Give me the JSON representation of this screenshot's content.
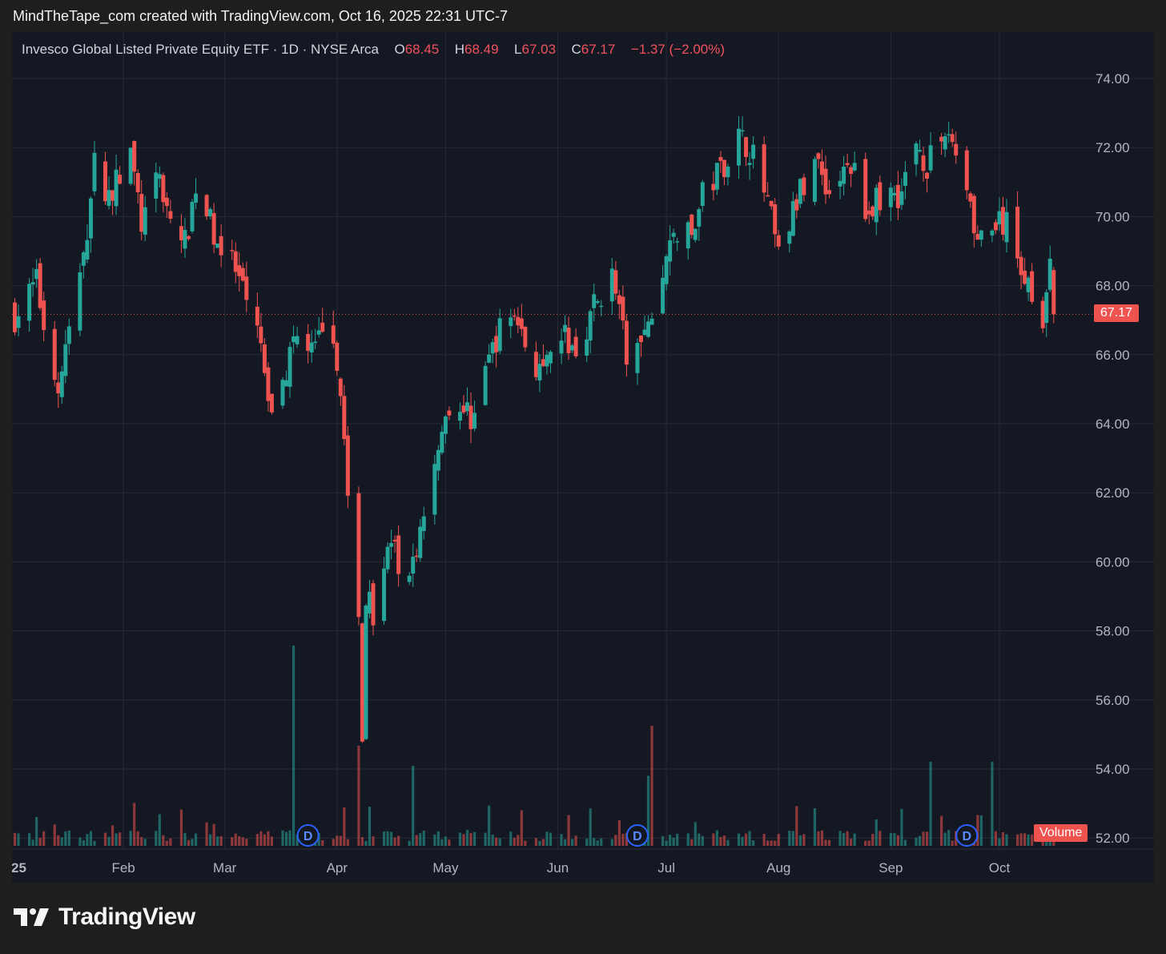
{
  "caption": "MindTheTape_com created with TradingView.com, Oct 16, 2025 22:31 UTC-7",
  "legend": {
    "name": "Invesco Global Listed Private Equity ETF",
    "interval": "1D",
    "exchange": "NYSE Arca",
    "o_label": "O",
    "o_value": "68.45",
    "h_label": "H",
    "h_value": "68.49",
    "l_label": "L",
    "l_value": "67.03",
    "c_label": "C",
    "c_value": "67.17",
    "change": "−1.37 (−2.00%)"
  },
  "last_price_label": "67.17",
  "volume_label": "Volume",
  "dividend_marker": "D",
  "brand": "TradingView",
  "colors": {
    "up": "#26a69a",
    "down": "#ef5350",
    "background": "#141823",
    "grid": "#262b36",
    "axis_text": "#b2b5be"
  },
  "chart_data": {
    "type": "candlestick",
    "title": "Invesco Global Listed Private Equity ETF · 1D · NYSE Arca",
    "x_ticks": [
      "2025",
      "Feb",
      "Mar",
      "Apr",
      "May",
      "Jun",
      "Jul",
      "Aug",
      "Sep",
      "Oct"
    ],
    "y_ticks": [
      "74.00",
      "72.00",
      "70.00",
      "68.00",
      "66.00",
      "64.00",
      "62.00",
      "60.00",
      "58.00",
      "56.00",
      "54.00",
      "52.00"
    ],
    "ylim": [
      51.7,
      75.0
    ],
    "grid": true,
    "last_price": 67.17,
    "dividend_markers": [
      "2025-03-24",
      "2025-06-23",
      "2025-09-22"
    ],
    "close_path": [
      [
        "2025-01-02",
        67.1
      ],
      [
        "2025-01-08",
        68.1
      ],
      [
        "2025-01-10",
        66.9
      ],
      [
        "2025-01-14",
        65.0
      ],
      [
        "2025-01-16",
        66.2
      ],
      [
        "2025-01-21",
        68.7
      ],
      [
        "2025-01-24",
        71.5
      ],
      [
        "2025-01-28",
        70.6
      ],
      [
        "2025-02-03",
        71.8
      ],
      [
        "2025-02-06",
        69.8
      ],
      [
        "2025-02-11",
        71.1
      ],
      [
        "2025-02-14",
        69.9
      ],
      [
        "2025-02-18",
        69.2
      ],
      [
        "2025-02-21",
        70.9
      ],
      [
        "2025-02-27",
        69.3
      ],
      [
        "2025-03-04",
        68.4
      ],
      [
        "2025-03-07",
        67.4
      ],
      [
        "2025-03-11",
        66.3
      ],
      [
        "2025-03-13",
        64.3
      ],
      [
        "2025-03-17",
        65.1
      ],
      [
        "2025-03-21",
        66.9
      ],
      [
        "2025-03-26",
        66.0
      ],
      [
        "2025-03-28",
        67.0
      ],
      [
        "2025-04-02",
        65.2
      ],
      [
        "2025-04-04",
        61.5
      ],
      [
        "2025-04-07",
        58.2
      ],
      [
        "2025-04-08",
        54.8
      ],
      [
        "2025-04-09",
        59.0
      ],
      [
        "2025-04-11",
        58.6
      ],
      [
        "2025-04-15",
        60.6
      ],
      [
        "2025-04-21",
        59.3
      ],
      [
        "2025-04-24",
        61.0
      ],
      [
        "2025-04-29",
        63.5
      ],
      [
        "2025-05-02",
        64.6
      ],
      [
        "2025-05-08",
        64.2
      ],
      [
        "2025-05-12",
        65.6
      ],
      [
        "2025-05-15",
        66.5
      ],
      [
        "2025-05-20",
        67.3
      ],
      [
        "2025-05-23",
        66.3
      ],
      [
        "2025-05-28",
        65.3
      ],
      [
        "2025-06-02",
        66.6
      ],
      [
        "2025-06-06",
        66.1
      ],
      [
        "2025-06-11",
        67.4
      ],
      [
        "2025-06-16",
        68.3
      ],
      [
        "2025-06-20",
        66.0
      ],
      [
        "2025-06-25",
        66.4
      ],
      [
        "2025-06-30",
        68.3
      ],
      [
        "2025-07-03",
        69.6
      ],
      [
        "2025-07-08",
        69.4
      ],
      [
        "2025-07-11",
        70.6
      ],
      [
        "2025-07-16",
        71.4
      ],
      [
        "2025-07-21",
        72.3
      ],
      [
        "2025-07-24",
        72.0
      ],
      [
        "2025-07-29",
        70.4
      ],
      [
        "2025-08-01",
        68.8
      ],
      [
        "2025-08-06",
        70.4
      ],
      [
        "2025-08-11",
        71.8
      ],
      [
        "2025-08-15",
        70.7
      ],
      [
        "2025-08-21",
        71.5
      ],
      [
        "2025-08-26",
        70.1
      ],
      [
        "2025-08-29",
        70.6
      ],
      [
        "2025-09-04",
        70.7
      ],
      [
        "2025-09-08",
        72.2
      ],
      [
        "2025-09-11",
        71.5
      ],
      [
        "2025-09-17",
        72.5
      ],
      [
        "2025-09-22",
        71.0
      ],
      [
        "2025-09-25",
        69.3
      ],
      [
        "2025-09-30",
        69.8
      ],
      [
        "2025-10-03",
        69.7
      ],
      [
        "2025-10-08",
        68.3
      ],
      [
        "2025-10-13",
        67.2
      ],
      [
        "2025-10-15",
        68.4
      ],
      [
        "2025-10-16",
        67.17
      ]
    ],
    "volume_spikes": [
      [
        "2025-03-20",
        "up",
        1.0
      ],
      [
        "2025-04-07",
        "down",
        0.5
      ],
      [
        "2025-04-22",
        "up",
        0.4
      ],
      [
        "2025-06-27",
        "down",
        0.6
      ],
      [
        "2025-06-26",
        "up",
        0.35
      ],
      [
        "2025-09-12",
        "up",
        0.42
      ],
      [
        "2025-09-29",
        "up",
        0.42
      ]
    ]
  }
}
